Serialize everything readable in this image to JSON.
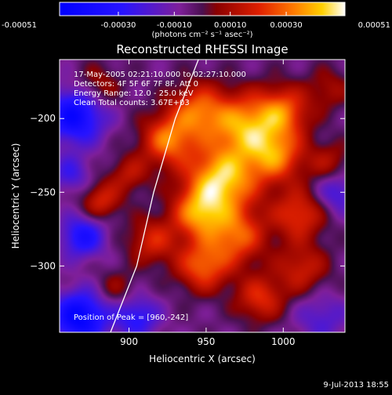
{
  "chart_data": {
    "type": "heatmap",
    "title": "Reconstructed RHESSI Image",
    "xlabel": "Heliocentric X (arcsec)",
    "ylabel": "Heliocentric Y (arcsec)",
    "xlim": [
      855,
      1040
    ],
    "ylim": [
      -345,
      -160
    ],
    "x_ticks": [
      900,
      950,
      1000
    ],
    "y_ticks": [
      -200,
      -250,
      -300
    ],
    "colorbar": {
      "min": -0.00051,
      "max": 0.00051,
      "tick_values": [
        -0.00051,
        -0.0003,
        -0.0001,
        0.0001,
        0.0003,
        0.00051
      ],
      "tick_labels": [
        "-0.00051",
        "-0.00030",
        "-0.00010",
        "0.00010",
        "0.00030",
        "0.00051"
      ],
      "unit_label": "(photons cm⁻² s⁻¹ asec⁻²)"
    },
    "annotations": [
      "17-May-2005 02:21:10.000 to 02:27:10.000",
      "Detectors: 4F 5F 6F 7F 8F, Att 0",
      "Energy Range: 12.0 - 25.0 keV",
      "Clean     Total counts: 3.67E+03"
    ],
    "peak_label": "Position of Peak = [960,-242]",
    "peak": [
      960,
      -242
    ],
    "limb_curve": [
      [
        888,
        -345
      ],
      [
        905,
        -300
      ],
      [
        916,
        -250
      ],
      [
        930,
        -200
      ],
      [
        945,
        -160
      ]
    ],
    "blobs": [
      {
        "x": 960,
        "y": -242,
        "value": 0.00051,
        "sigma": 16
      },
      {
        "x": 975,
        "y": -205,
        "value": 0.0004,
        "sigma": 15
      },
      {
        "x": 945,
        "y": -195,
        "value": 0.00034,
        "sigma": 13
      },
      {
        "x": 925,
        "y": -215,
        "value": 0.00036,
        "sigma": 12
      },
      {
        "x": 995,
        "y": -225,
        "value": 0.00036,
        "sigma": 13
      },
      {
        "x": 1000,
        "y": -195,
        "value": 0.00032,
        "sigma": 12
      },
      {
        "x": 945,
        "y": -265,
        "value": 0.00036,
        "sigma": 12
      },
      {
        "x": 970,
        "y": -280,
        "value": 0.00033,
        "sigma": 13
      },
      {
        "x": 948,
        "y": -300,
        "value": 0.00034,
        "sigma": 12
      },
      {
        "x": 1010,
        "y": -265,
        "value": 0.00028,
        "sigma": 12
      },
      {
        "x": 1012,
        "y": -302,
        "value": 0.00022,
        "sigma": 12
      },
      {
        "x": 985,
        "y": -322,
        "value": 0.00026,
        "sigma": 11
      },
      {
        "x": 915,
        "y": -283,
        "value": 0.00024,
        "sigma": 11
      },
      {
        "x": 882,
        "y": -256,
        "value": 0.00024,
        "sigma": 9
      },
      {
        "x": 900,
        "y": -238,
        "value": 0.00018,
        "sigma": 9
      },
      {
        "x": 880,
        "y": -178,
        "value": 0.00016,
        "sigma": 10
      },
      {
        "x": 892,
        "y": -315,
        "value": 0.00012,
        "sigma": 9
      },
      {
        "x": 1030,
        "y": -230,
        "value": 0.00016,
        "sigma": 10
      },
      {
        "x": 1030,
        "y": -180,
        "value": 0.00014,
        "sigma": 10
      },
      {
        "x": 865,
        "y": -198,
        "value": -0.0004,
        "sigma": 13
      },
      {
        "x": 868,
        "y": -335,
        "value": -0.00045,
        "sigma": 12
      },
      {
        "x": 905,
        "y": -335,
        "value": -0.00025,
        "sigma": 10
      },
      {
        "x": 870,
        "y": -280,
        "value": -0.0003,
        "sigma": 10
      },
      {
        "x": 862,
        "y": -238,
        "value": -0.00018,
        "sigma": 9
      },
      {
        "x": 1035,
        "y": -250,
        "value": -0.0002,
        "sigma": 10
      },
      {
        "x": 1025,
        "y": -335,
        "value": -0.00015,
        "sigma": 12
      }
    ],
    "baseline": -5e-05
  },
  "footer": {
    "date": "9-Jul-2013 18:55"
  }
}
